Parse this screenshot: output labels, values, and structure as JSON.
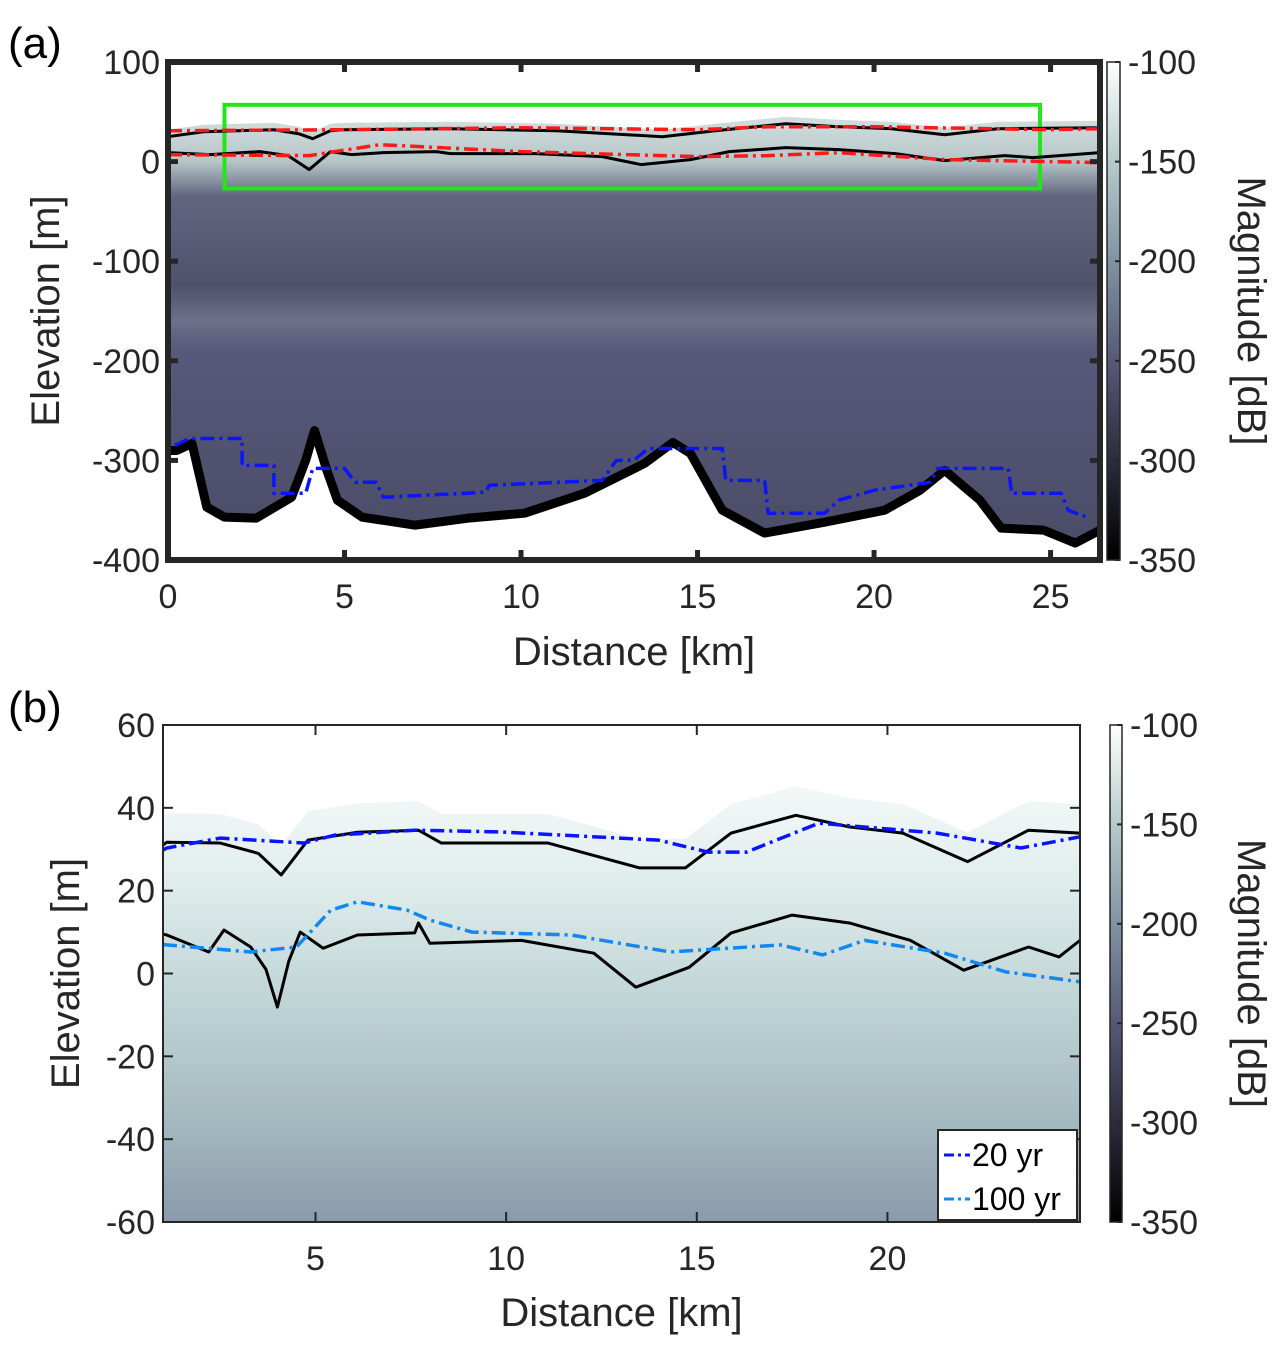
{
  "colors": {
    "ice_bed": "#000000",
    "radar_layers_red": "#ff1a1a",
    "bed_model_blue": "#0a14ff",
    "layer_20yr": "#1010e0",
    "layer_100yr": "#1488f0",
    "roi_box": "#22e61a"
  },
  "chart_data": [
    {
      "type": "heatmap",
      "panel_label": "(a)",
      "xlabel": "Distance [km]",
      "ylabel": "Elevation [m]",
      "xlim": [
        0,
        26.4
      ],
      "ylim": [
        -400,
        100
      ],
      "xticks": [
        "0",
        "5",
        "10",
        "15",
        "20",
        "25"
      ],
      "xtick_values": [
        0,
        5,
        10,
        15,
        20,
        25
      ],
      "yticks": [
        "100",
        "0",
        "-100",
        "-200",
        "-300",
        "-400"
      ],
      "ytick_values": [
        100,
        0,
        -100,
        -200,
        -300,
        -400
      ],
      "colorbar": {
        "label": "Magnitude [dB]",
        "range": [
          -350,
          -100
        ],
        "ticks": [
          "-100",
          "-150",
          "-200",
          "-250",
          "-300",
          "-350"
        ],
        "tick_values": [
          -100,
          -150,
          -200,
          -250,
          -300,
          -350
        ]
      },
      "roi_box": {
        "x": [
          1.6,
          24.7
        ],
        "y": [
          -27,
          57
        ]
      },
      "series": [
        {
          "name": "bed",
          "style": "black-thick",
          "points": [
            [
              0,
              -290
            ],
            [
              0.25,
              -290
            ],
            [
              0.68,
              -283
            ],
            [
              1.1,
              -347
            ],
            [
              1.6,
              -357
            ],
            [
              2.5,
              -358
            ],
            [
              3.5,
              -337
            ],
            [
              3.9,
              -300
            ],
            [
              4.15,
              -270
            ],
            [
              4.5,
              -310
            ],
            [
              4.8,
              -340
            ],
            [
              5.5,
              -357
            ],
            [
              7.0,
              -365
            ],
            [
              8.5,
              -358
            ],
            [
              10.1,
              -353
            ],
            [
              11.8,
              -333
            ],
            [
              13.5,
              -303
            ],
            [
              14.3,
              -282
            ],
            [
              14.8,
              -293
            ],
            [
              15.7,
              -350
            ],
            [
              16.9,
              -373
            ],
            [
              18.6,
              -362
            ],
            [
              20.3,
              -350
            ],
            [
              21.3,
              -330
            ],
            [
              22.0,
              -310
            ],
            [
              23.0,
              -340
            ],
            [
              23.6,
              -368
            ],
            [
              24.8,
              -370
            ],
            [
              25.7,
              -383
            ],
            [
              26.4,
              -370
            ]
          ]
        },
        {
          "name": "bed-model",
          "style": "blue-dashdot",
          "points": [
            [
              0.2,
              -285
            ],
            [
              0.6,
              -278
            ],
            [
              2.1,
              -278
            ],
            [
              2.1,
              -305
            ],
            [
              3.0,
              -305
            ],
            [
              3.0,
              -333
            ],
            [
              3.9,
              -333
            ],
            [
              4.1,
              -308
            ],
            [
              5.0,
              -308
            ],
            [
              5.3,
              -322
            ],
            [
              5.9,
              -322
            ],
            [
              6.1,
              -337
            ],
            [
              9.0,
              -332
            ],
            [
              9.1,
              -325
            ],
            [
              12.3,
              -320
            ],
            [
              12.7,
              -300
            ],
            [
              13.2,
              -300
            ],
            [
              13.6,
              -288
            ],
            [
              15.7,
              -288
            ],
            [
              15.8,
              -320
            ],
            [
              16.9,
              -320
            ],
            [
              17.0,
              -353
            ],
            [
              18.6,
              -353
            ],
            [
              19.0,
              -340
            ],
            [
              20.0,
              -330
            ],
            [
              21.6,
              -322
            ],
            [
              21.8,
              -308
            ],
            [
              23.8,
              -308
            ],
            [
              23.9,
              -333
            ],
            [
              25.3,
              -333
            ],
            [
              25.5,
              -350
            ],
            [
              26.1,
              -358
            ]
          ]
        },
        {
          "name": "surface-black",
          "style": "black",
          "points": [
            [
              0,
              25
            ],
            [
              1,
              30
            ],
            [
              3,
              32
            ],
            [
              3.7,
              28
            ],
            [
              4.1,
              23
            ],
            [
              4.6,
              31
            ],
            [
              5,
              32
            ],
            [
              8,
              33
            ],
            [
              11,
              31
            ],
            [
              14,
              25
            ],
            [
              15.5,
              31
            ],
            [
              17.5,
              38
            ],
            [
              19,
              35
            ],
            [
              20.5,
              33
            ],
            [
              22,
              27
            ],
            [
              23.5,
              33
            ],
            [
              26.4,
              34
            ]
          ]
        },
        {
          "name": "internal-layer-black",
          "style": "black",
          "points": [
            [
              0,
              9
            ],
            [
              1.2,
              7
            ],
            [
              2.6,
              10
            ],
            [
              3.4,
              6
            ],
            [
              4.0,
              -8
            ],
            [
              4.6,
              10
            ],
            [
              5.2,
              7
            ],
            [
              6.1,
              9
            ],
            [
              7.6,
              10
            ],
            [
              8,
              8
            ],
            [
              10.4,
              8
            ],
            [
              12.3,
              5
            ],
            [
              13.4,
              -3
            ],
            [
              14.8,
              2
            ],
            [
              15.9,
              10
            ],
            [
              17.5,
              14
            ],
            [
              19,
              12
            ],
            [
              20.6,
              8
            ],
            [
              22,
              1
            ],
            [
              23.7,
              6
            ],
            [
              24.5,
              4
            ],
            [
              26.4,
              9
            ]
          ]
        },
        {
          "name": "surface-red",
          "style": "red-dashdot",
          "points": [
            [
              0,
              31
            ],
            [
              5,
              32
            ],
            [
              10,
              34
            ],
            [
              15,
              32
            ],
            [
              17,
              35
            ],
            [
              20,
              35
            ],
            [
              25,
              32
            ],
            [
              26.4,
              33
            ]
          ]
        },
        {
          "name": "internal-layer-red",
          "style": "red-dashdot",
          "points": [
            [
              0,
              7
            ],
            [
              4,
              6
            ],
            [
              6,
              17
            ],
            [
              10,
              10
            ],
            [
              15,
              5
            ],
            [
              17,
              6
            ],
            [
              19,
              9
            ],
            [
              22,
              2
            ],
            [
              26.4,
              -1
            ]
          ]
        }
      ]
    },
    {
      "type": "heatmap",
      "panel_label": "(b)",
      "xlabel": "Distance [km]",
      "ylabel": "Elevation [m]",
      "xlim": [
        1,
        25.05
      ],
      "ylim": [
        -60,
        60
      ],
      "xticks": [
        "5",
        "10",
        "15",
        "20"
      ],
      "xtick_values": [
        5,
        10,
        15,
        20
      ],
      "yticks": [
        "60",
        "40",
        "20",
        "0",
        "-20",
        "-40",
        "-60"
      ],
      "ytick_values": [
        60,
        40,
        20,
        0,
        -20,
        -40,
        -60
      ],
      "colorbar": {
        "label": "Magnitude [dB]",
        "range": [
          -350,
          -100
        ],
        "ticks": [
          "-100",
          "-150",
          "-200",
          "-250",
          "-300",
          "-350"
        ],
        "tick_values": [
          -100,
          -150,
          -200,
          -250,
          -300,
          -350
        ]
      },
      "legend": {
        "placement": "bottom-right",
        "entries": [
          "20 yr",
          "100 yr"
        ]
      },
      "series": [
        {
          "name": "surface-black",
          "style": "black",
          "points": [
            [
              1,
              31
            ],
            [
              1.1,
              31.7
            ],
            [
              2.5,
              31.5
            ],
            [
              3.5,
              29
            ],
            [
              4.1,
              23.8
            ],
            [
              4.8,
              32.2
            ],
            [
              6.1,
              34.1
            ],
            [
              7.7,
              34.6
            ],
            [
              8.3,
              31.5
            ],
            [
              11.1,
              31.5
            ],
            [
              13.5,
              25.5
            ],
            [
              14.7,
              25.5
            ],
            [
              15.9,
              33.9
            ],
            [
              17.6,
              38.2
            ],
            [
              19,
              35.4
            ],
            [
              20.4,
              33.9
            ],
            [
              22.1,
              27
            ],
            [
              23.7,
              34.6
            ],
            [
              25.05,
              33.9
            ]
          ]
        },
        {
          "name": "internal-layer-black",
          "style": "black",
          "points": [
            [
              1,
              9.5
            ],
            [
              1.1,
              9.3
            ],
            [
              2.2,
              5.2
            ],
            [
              2.6,
              10.5
            ],
            [
              3.3,
              6.4
            ],
            [
              3.7,
              1
            ],
            [
              4.0,
              -8.1
            ],
            [
              4.3,
              3
            ],
            [
              4.6,
              10
            ],
            [
              5.2,
              6.1
            ],
            [
              6.1,
              9.3
            ],
            [
              7.6,
              9.8
            ],
            [
              7.7,
              12.2
            ],
            [
              8.0,
              7.3
            ],
            [
              10.4,
              8
            ],
            [
              12.3,
              4.9
            ],
            [
              13.4,
              -3.3
            ],
            [
              14.8,
              1.5
            ],
            [
              15.9,
              9.8
            ],
            [
              17.5,
              14.1
            ],
            [
              19.0,
              12.2
            ],
            [
              20.6,
              8
            ],
            [
              22.0,
              0.8
            ],
            [
              23.7,
              6.4
            ],
            [
              24.5,
              4
            ],
            [
              25.05,
              8
            ]
          ]
        },
        {
          "name": "20 yr",
          "style": "blue-dashdot",
          "points": [
            [
              1,
              29.8
            ],
            [
              1.1,
              30.3
            ],
            [
              2.5,
              32.7
            ],
            [
              4.7,
              31.5
            ],
            [
              5.5,
              33.4
            ],
            [
              7.6,
              34.6
            ],
            [
              9.8,
              34.2
            ],
            [
              14.0,
              32.2
            ],
            [
              15.3,
              29.3
            ],
            [
              16.3,
              29.3
            ],
            [
              18.2,
              36.3
            ],
            [
              21.3,
              33.9
            ],
            [
              23.5,
              30.3
            ],
            [
              25.05,
              33
            ]
          ]
        },
        {
          "name": "100 yr",
          "style": "lightblue-dashdot",
          "points": [
            [
              1,
              7
            ],
            [
              1.1,
              6.9
            ],
            [
              3.3,
              5.2
            ],
            [
              4.5,
              6.4
            ],
            [
              5.4,
              15.3
            ],
            [
              6.1,
              17.3
            ],
            [
              7.4,
              15.3
            ],
            [
              8.0,
              12.9
            ],
            [
              9.1,
              10
            ],
            [
              11.7,
              9.3
            ],
            [
              14.3,
              5.2
            ],
            [
              17.2,
              6.9
            ],
            [
              18.3,
              4.5
            ],
            [
              19.4,
              8
            ],
            [
              21.5,
              4.9
            ],
            [
              23.1,
              0.4
            ],
            [
              25.05,
              -2
            ]
          ]
        }
      ]
    }
  ]
}
